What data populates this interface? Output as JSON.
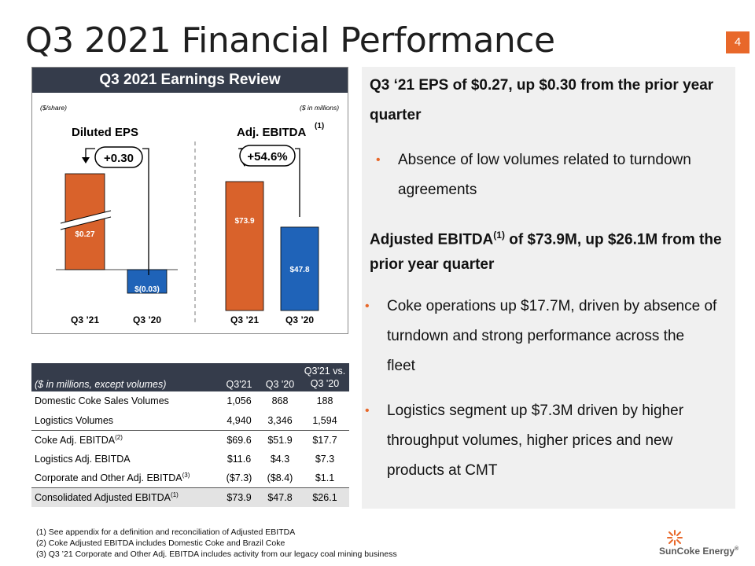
{
  "title": "Q3 2021 Financial Performance",
  "page_number": "4",
  "earnings_panel": {
    "header": "Q3 2021 Earnings Review",
    "eps_unit": "($/share)",
    "ebitda_unit": "($ in millions)",
    "eps_title": "Diluted EPS",
    "ebitda_title": "Adj. EBITDA",
    "ebitda_footnote": "(1)",
    "eps_change": "+0.30",
    "ebitda_change": "+54.6%"
  },
  "chart_data": [
    {
      "type": "bar",
      "title": "Diluted EPS",
      "categories": [
        "Q3 ’21",
        "Q3 ’20"
      ],
      "values": [
        0.27,
        -0.03
      ],
      "value_labels": [
        "$0.27",
        "$(0.03)"
      ],
      "colors": [
        "#d9622b",
        "#1f63b8"
      ],
      "broken_axis": true
    },
    {
      "type": "bar",
      "title": "Adj. EBITDA",
      "categories": [
        "Q3 ’21",
        "Q3 ’20"
      ],
      "values": [
        73.9,
        47.8
      ],
      "value_labels": [
        "$73.9",
        "$47.8"
      ],
      "colors": [
        "#d9622b",
        "#1f63b8"
      ]
    }
  ],
  "right_panel": {
    "heading1": "Q3 ‘21 EPS of $0.27, up $0.30 from the prior year",
    "heading1_cont": "quarter",
    "bullet1_line1": "Absence of low volumes related to turndown",
    "bullet1_line2": "agreements",
    "heading2_a": "Adjusted EBITDA",
    "heading2_sup": "(1)",
    "heading2_b": " of $73.9M, up $26.1M from the",
    "heading2_cont": "prior year quarter",
    "bullet2_line1": "Coke operations up $17.7M, driven by absence of",
    "bullet2_line2": "turndown and strong performance across the",
    "bullet2_line3": "fleet",
    "bullet3_line1": "Logistics segment up $7.3M driven by higher",
    "bullet3_line2": "throughput volumes, higher prices and new",
    "bullet3_line3": "products at CMT",
    "bullet_char": "•"
  },
  "table": {
    "header_label": "($ in millions, except volumes)",
    "col1": "Q3'21",
    "col2": "Q3 '20",
    "col3_line1": "Q3'21 vs.",
    "col3_line2": "Q3 '20",
    "rows": [
      {
        "label": "Domestic Coke Sales Volumes",
        "sup": "",
        "a": "1,056",
        "b": "868",
        "c": "188"
      },
      {
        "label": "Logistics Volumes",
        "sup": "",
        "a": "4,940",
        "b": "3,346",
        "c": "1,594"
      },
      {
        "label": "Coke Adj. EBITDA",
        "sup": "(2)",
        "a": "$69.6",
        "b": "$51.9",
        "c": "$17.7"
      },
      {
        "label": "Logistics Adj. EBITDA",
        "sup": "",
        "a": "$11.6",
        "b": "$4.3",
        "c": "$7.3"
      },
      {
        "label": "Corporate and Other Adj. EBITDA",
        "sup": "(3)",
        "a": "($7.3)",
        "b": "($8.4)",
        "c": "$1.1"
      },
      {
        "label": "Consolidated Adjusted EBITDA",
        "sup": "(1)",
        "a": "$73.9",
        "b": "$47.8",
        "c": "$26.1"
      }
    ]
  },
  "footnotes": [
    "(1)  See appendix for a definition and reconciliation of Adjusted EBITDA",
    "(2)  Coke Adjusted EBITDA includes Domestic Coke and Brazil Coke",
    "(3)  Q3 ’21 Corporate and Other Adj. EBITDA includes activity from our legacy coal mining business"
  ],
  "logo_text": "SunCoke Energy",
  "logo_mark": "®",
  "colors": {
    "accent": "#e8682a",
    "navy": "#353c4b",
    "bar_orange": "#d9622b",
    "bar_blue": "#1f63b8"
  }
}
